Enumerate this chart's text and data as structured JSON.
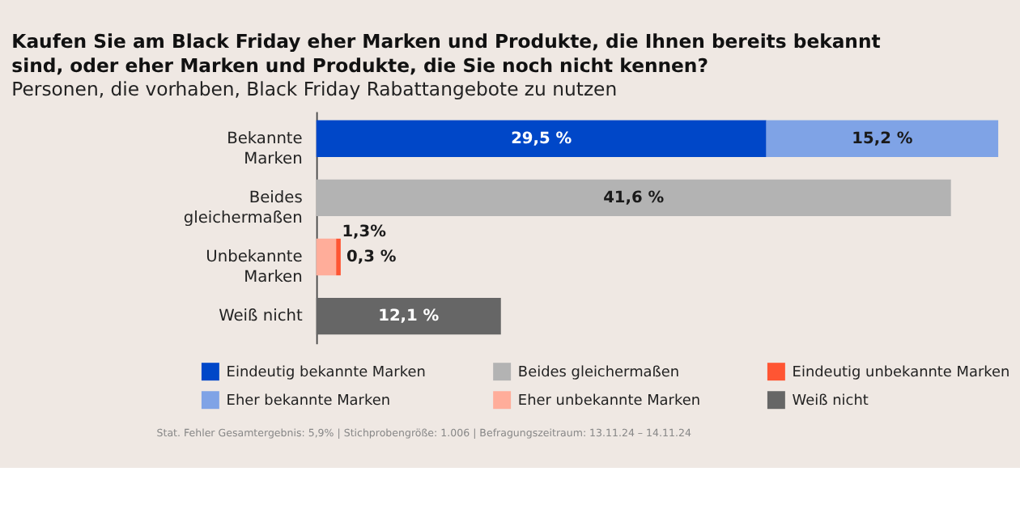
{
  "chart_data": {
    "type": "bar",
    "orientation": "horizontal",
    "stacked": true,
    "title": "Kaufen Sie am Black Friday eher Marken und Produkte, die Ihnen bereits bekannt sind, oder eher Marken und Produkte, die Sie noch nicht kennen?",
    "subtitle": "Personen, die vorhaben, Black Friday Rabattangebote zu nutzen",
    "categories": [
      "Bekannte Marken",
      "Beides gleichermaßen",
      "Unbekannte Marken",
      "Weiß nicht"
    ],
    "series": [
      {
        "name": "Eindeutig bekannte Marken",
        "color": "#0047c8",
        "values": [
          29.5,
          null,
          null,
          null
        ],
        "value_labels": [
          "29,5 %",
          null,
          null,
          null
        ]
      },
      {
        "name": "Eher bekannte Marken",
        "color": "#7fa3e6",
        "values": [
          15.2,
          null,
          null,
          null
        ],
        "value_labels": [
          "15,2 %",
          null,
          null,
          null
        ]
      },
      {
        "name": "Beides gleichermaßen",
        "color": "#b3b3b3",
        "values": [
          null,
          41.6,
          null,
          null
        ],
        "value_labels": [
          null,
          "41,6 %",
          null,
          null
        ]
      },
      {
        "name": "Eher unbekannte Marken",
        "color": "#ffad9a",
        "values": [
          null,
          null,
          1.3,
          null
        ],
        "value_labels": [
          null,
          null,
          "1,3%",
          null
        ]
      },
      {
        "name": "Eindeutig unbekannte Marken",
        "color": "#ff5533",
        "values": [
          null,
          null,
          0.3,
          null
        ],
        "value_labels": [
          null,
          null,
          "0,3 %",
          null
        ]
      },
      {
        "name": "Weiß nicht",
        "color": "#666666",
        "values": [
          null,
          null,
          null,
          12.1
        ],
        "value_labels": [
          null,
          null,
          null,
          "12,1 %"
        ]
      }
    ],
    "legend": "bottom",
    "annotations": [
      "Stat. Fehler Gesamtergebnis: 5,9% | Stichprobengröße: 1.006 | Befragungszeitraum: 13.11.24 – 14.11.24"
    ]
  }
}
